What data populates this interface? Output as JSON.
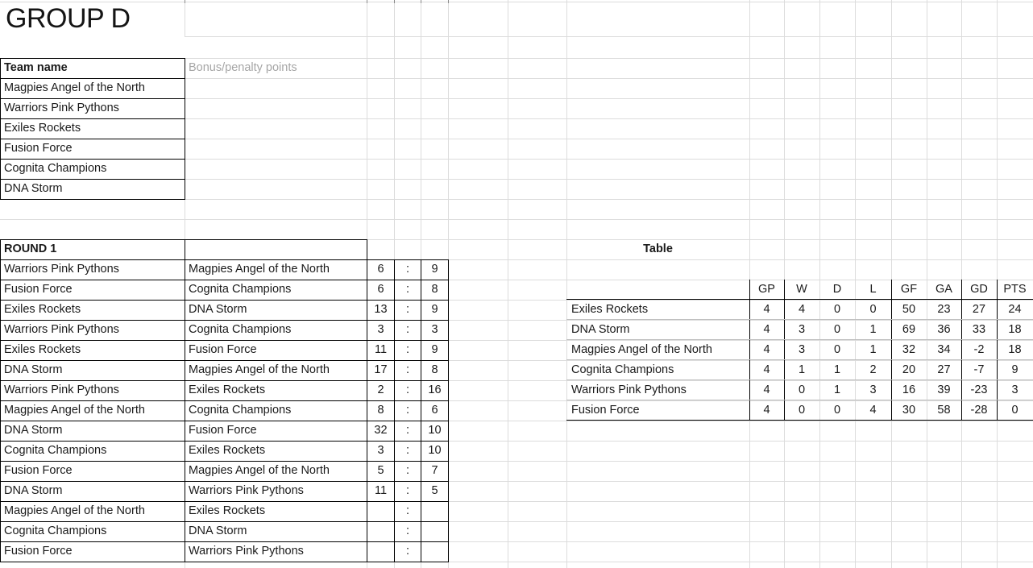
{
  "sheet": {
    "title": "GROUP D",
    "teams_section": {
      "header": "Team name",
      "bonus_label": "Bonus/penalty points",
      "teams": [
        "Magpies Angel of the North",
        "Warriors Pink Pythons",
        "Exiles Rockets",
        "Fusion Force",
        "Cognita Champions",
        "DNA Storm"
      ]
    },
    "round1": {
      "header": "ROUND 1",
      "separator": ":",
      "matches": [
        {
          "home": "Warriors Pink Pythons",
          "away": "Magpies Angel of the North",
          "home_score": "6",
          "away_score": "9"
        },
        {
          "home": "Fusion Force",
          "away": "Cognita Champions",
          "home_score": "6",
          "away_score": "8"
        },
        {
          "home": "Exiles Rockets",
          "away": "DNA Storm",
          "home_score": "13",
          "away_score": "9"
        },
        {
          "home": "Warriors Pink Pythons",
          "away": "Cognita Champions",
          "home_score": "3",
          "away_score": "3"
        },
        {
          "home": "Exiles Rockets",
          "away": "Fusion Force",
          "home_score": "11",
          "away_score": "9"
        },
        {
          "home": "DNA Storm",
          "away": "Magpies Angel of the North",
          "home_score": "17",
          "away_score": "8"
        },
        {
          "home": "Warriors Pink Pythons",
          "away": "Exiles Rockets",
          "home_score": "2",
          "away_score": "16"
        },
        {
          "home": "Magpies Angel of the North",
          "away": "Cognita Champions",
          "home_score": "8",
          "away_score": "6"
        },
        {
          "home": "DNA Storm",
          "away": "Fusion Force",
          "home_score": "32",
          "away_score": "10"
        },
        {
          "home": "Cognita Champions",
          "away": "Exiles Rockets",
          "home_score": "3",
          "away_score": "10"
        },
        {
          "home": "Fusion Force",
          "away": "Magpies Angel of the North",
          "home_score": "5",
          "away_score": "7"
        },
        {
          "home": "DNA Storm",
          "away": "Warriors Pink Pythons",
          "home_score": "11",
          "away_score": "5"
        },
        {
          "home": "Magpies Angel of the North",
          "away": "Exiles Rockets",
          "home_score": "",
          "away_score": ""
        },
        {
          "home": "Cognita Champions",
          "away": "DNA Storm",
          "home_score": "",
          "away_score": ""
        },
        {
          "home": "Fusion Force",
          "away": "Warriors Pink Pythons",
          "home_score": "",
          "away_score": ""
        }
      ]
    },
    "standings": {
      "title": "Table",
      "columns": [
        "GP",
        "W",
        "D",
        "L",
        "GF",
        "GA",
        "GD",
        "PTS"
      ],
      "rows": [
        {
          "team": "Exiles Rockets",
          "gp": "4",
          "w": "4",
          "d": "0",
          "l": "0",
          "gf": "50",
          "ga": "23",
          "gd": "27",
          "pts": "24"
        },
        {
          "team": "DNA Storm",
          "gp": "4",
          "w": "3",
          "d": "0",
          "l": "1",
          "gf": "69",
          "ga": "36",
          "gd": "33",
          "pts": "18"
        },
        {
          "team": "Magpies Angel of the North",
          "gp": "4",
          "w": "3",
          "d": "0",
          "l": "1",
          "gf": "32",
          "ga": "34",
          "gd": "-2",
          "pts": "18"
        },
        {
          "team": "Cognita Champions",
          "gp": "4",
          "w": "1",
          "d": "1",
          "l": "2",
          "gf": "20",
          "ga": "27",
          "gd": "-7",
          "pts": "9"
        },
        {
          "team": "Warriors Pink Pythons",
          "gp": "4",
          "w": "0",
          "d": "1",
          "l": "3",
          "gf": "16",
          "ga": "39",
          "gd": "-23",
          "pts": "3"
        },
        {
          "team": "Fusion Force",
          "gp": "4",
          "w": "0",
          "d": "0",
          "l": "4",
          "gf": "30",
          "ga": "58",
          "gd": "-28",
          "pts": "0"
        }
      ]
    },
    "colors": {
      "cell_border": "#000000",
      "gridline": "#dcdcdc",
      "standings_row_line": "#bfbfbf",
      "muted_label": "#a6a6a6",
      "text": "#1a1a1a"
    }
  }
}
